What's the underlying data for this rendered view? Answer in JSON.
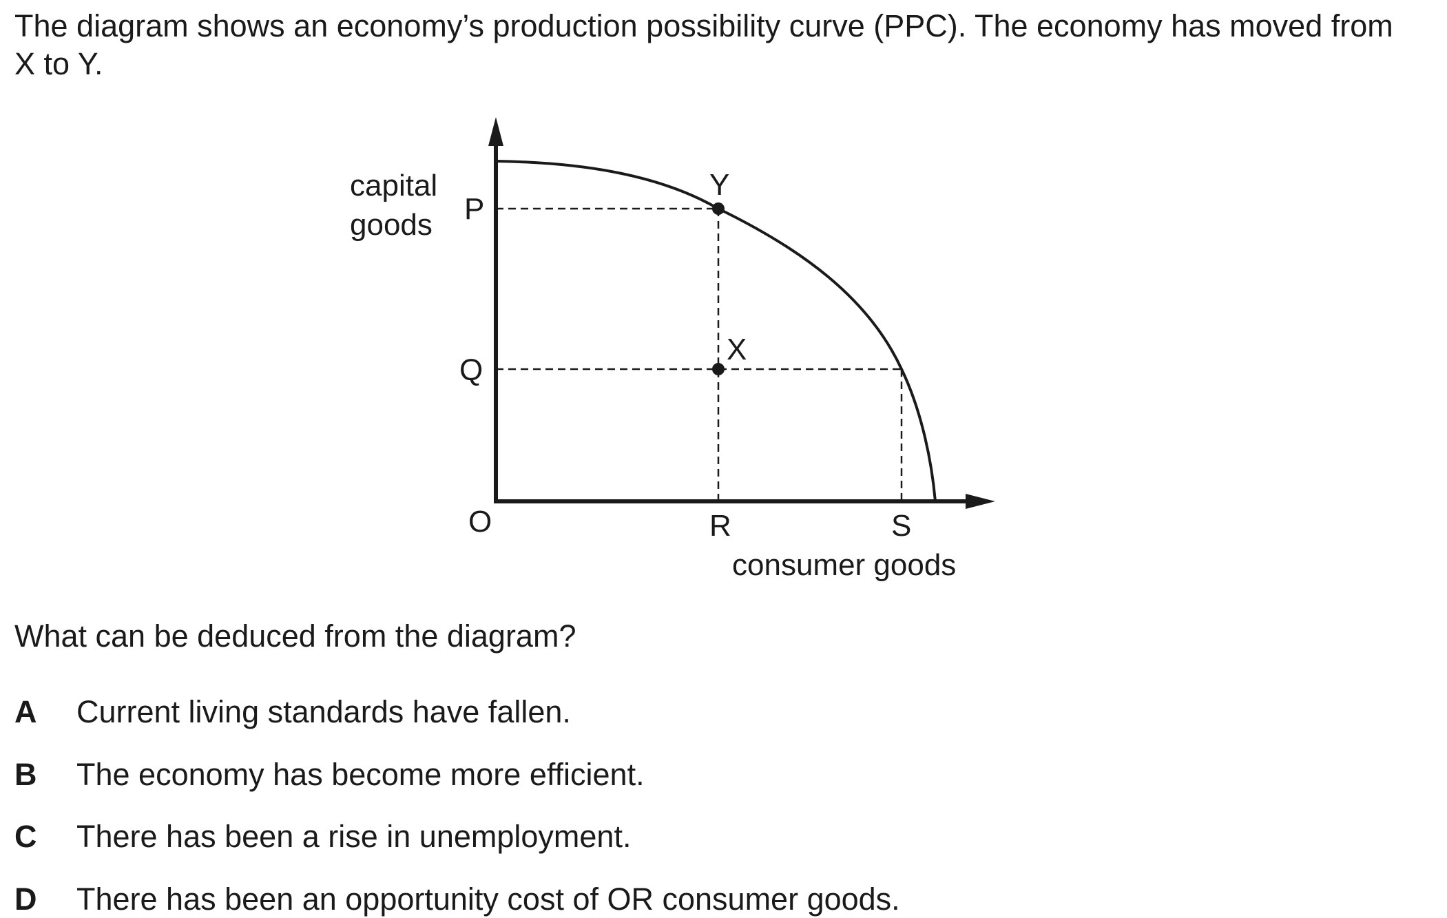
{
  "question": {
    "stem": "The diagram shows an economy’s production possibility curve (PPC). The economy has moved from X to Y.",
    "prompt": "What can be deduced from the diagram?",
    "options": [
      {
        "letter": "A",
        "text": "Current living standards have fallen."
      },
      {
        "letter": "B",
        "text": "The economy has become more efficient."
      },
      {
        "letter": "C",
        "text": "There has been a rise in unemployment."
      },
      {
        "letter": "D",
        "text": "There has been an opportunity cost of OR consumer goods."
      }
    ]
  },
  "diagram": {
    "y_axis_label_line1": "capital",
    "y_axis_label_line2": "goods",
    "x_axis_label": "consumer goods",
    "origin_label": "O",
    "tick_labels": {
      "P": "P",
      "Q": "Q",
      "R": "R",
      "S": "S"
    },
    "point_labels": {
      "X": "X",
      "Y": "Y"
    }
  }
}
